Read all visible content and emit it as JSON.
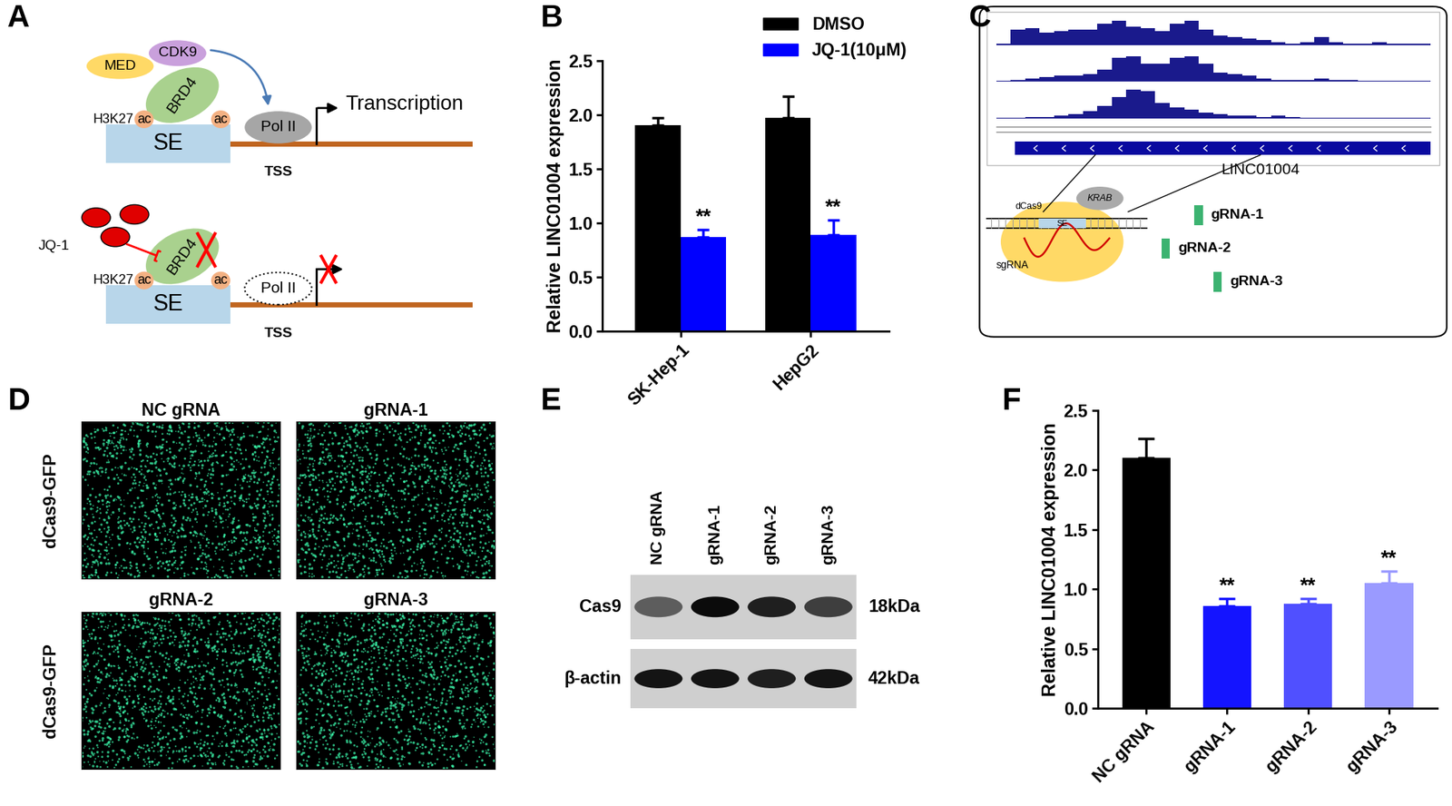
{
  "chart_data": [
    {
      "panel": "B",
      "type": "bar",
      "y_label": "Relative LINC01004 expression",
      "categories": [
        "SK-Hep-1",
        "HepG2"
      ],
      "series": [
        {
          "name": "DMSO",
          "color": "#000000",
          "values": [
            1.9,
            1.97
          ],
          "errors": [
            0.07,
            0.2
          ]
        },
        {
          "name": "JQ-1(10μM)",
          "color": "#0000ff",
          "values": [
            0.87,
            0.89
          ],
          "errors": [
            0.07,
            0.14
          ]
        }
      ],
      "annotations": [
        {
          "text": "**",
          "category": "SK-Hep-1",
          "series": "JQ-1(10μM)"
        },
        {
          "text": "**",
          "category": "HepG2",
          "series": "JQ-1(10μM)"
        }
      ],
      "ylim": [
        0,
        2.5
      ],
      "yticks": [
        {
          "value": 0,
          "label": "0.0"
        },
        {
          "value": 0.5,
          "label": "0.5"
        },
        {
          "value": 1,
          "label": "1.0"
        },
        {
          "value": 1.5,
          "label": "1.5"
        },
        {
          "value": 2,
          "label": "2.0"
        },
        {
          "value": 2.5,
          "label": "2.5"
        }
      ],
      "legend": "upper right"
    },
    {
      "panel": "F",
      "type": "bar",
      "y_label": "Relative LINC01004 expression",
      "categories": [
        "NC gRNA",
        "gRNA-1",
        "gRNA-2",
        "gRNA-3"
      ],
      "values": [
        2.1,
        0.86,
        0.88,
        1.05
      ],
      "errors": [
        0.16,
        0.06,
        0.04,
        0.1
      ],
      "colors": [
        "#000000",
        "#1414ff",
        "#5050ff",
        "#9a9aff"
      ],
      "annotations": [
        {
          "text": "**",
          "category": "gRNA-1"
        },
        {
          "text": "**",
          "category": "gRNA-2"
        },
        {
          "text": "**",
          "category": "gRNA-3"
        }
      ],
      "ylim": [
        0,
        2.5
      ],
      "yticks": [
        {
          "value": 0,
          "label": "0.0"
        },
        {
          "value": 0.5,
          "label": "0.5"
        },
        {
          "value": 1,
          "label": "1.0"
        },
        {
          "value": 1.5,
          "label": "1.5"
        },
        {
          "value": 2,
          "label": "2.0"
        },
        {
          "value": 2.5,
          "label": "2.5"
        }
      ]
    }
  ],
  "diagram_A": {
    "panel": "A",
    "active": {
      "factors": [
        "MED",
        "CDK9",
        "BRD4"
      ],
      "marks": [
        "H3K27",
        "ac",
        "ac"
      ],
      "polymerase": "Pol II",
      "output": "Transcription",
      "element": "SE",
      "site": "TSS"
    },
    "inhibited": {
      "drug": "JQ-1",
      "factor": "BRD4",
      "marks": [
        "H3K27",
        "ac",
        "ac"
      ],
      "polymerase": "Pol II",
      "element": "SE",
      "site": "TSS"
    }
  },
  "diagram_C": {
    "panel": "C",
    "tracks": [
      {
        "signal": [
          0.05,
          0.5,
          0.55,
          0.4,
          0.45,
          0.5,
          0.5,
          0.7,
          0.8,
          0.6,
          0.55,
          0.45,
          0.7,
          0.8,
          0.5,
          0.3,
          0.25,
          0.2,
          0.15,
          0.1,
          0.05,
          0.1,
          0.25,
          0.1,
          0.05,
          0.05,
          0.1,
          0.05,
          0.05,
          0.05
        ]
      },
      {
        "signal": [
          0.02,
          0.05,
          0.1,
          0.15,
          0.2,
          0.2,
          0.25,
          0.4,
          0.8,
          0.85,
          0.6,
          0.6,
          0.8,
          0.85,
          0.6,
          0.3,
          0.25,
          0.2,
          0.1,
          0.05,
          0.05,
          0.05,
          0.1,
          0.05,
          0.05,
          0.02,
          0.02,
          0.02,
          0.02,
          0.02
        ]
      },
      {
        "signal": [
          0.02,
          0.02,
          0.05,
          0.05,
          0.1,
          0.15,
          0.25,
          0.4,
          0.7,
          0.95,
          0.9,
          0.5,
          0.35,
          0.3,
          0.2,
          0.15,
          0.1,
          0.08,
          0.05,
          0.1,
          0.05,
          0.02,
          0.02,
          0.02,
          0.02,
          0.02,
          0.02,
          0.02,
          0.02,
          0.02
        ]
      }
    ],
    "gene": "LINC01004",
    "construct": {
      "protein": "dCas9",
      "effector": "KRAB",
      "element": "SE",
      "guide": "sgRNA"
    },
    "guides": [
      "gRNA-1",
      "gRNA-2",
      "gRNA-3"
    ]
  },
  "images_D": {
    "panel": "D",
    "titles": [
      "NC gRNA",
      "gRNA-1",
      "gRNA-2",
      "gRNA-3"
    ],
    "row_labels": [
      "dCas9-GFP",
      "dCas9-GFP"
    ]
  },
  "blot_E": {
    "panel": "E",
    "lanes": [
      "NC gRNA",
      "gRNA-1",
      "gRNA-2",
      "gRNA-3"
    ],
    "rows": [
      {
        "name": "Cas9",
        "size": "18kDa",
        "band_intensity": [
          0.55,
          0.95,
          0.85,
          0.7
        ]
      },
      {
        "name": "β-actin",
        "size": "42kDa",
        "band_intensity": [
          0.9,
          0.9,
          0.85,
          0.9
        ]
      }
    ]
  }
}
